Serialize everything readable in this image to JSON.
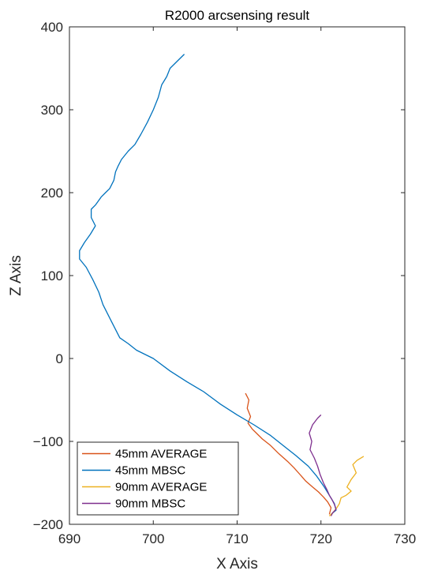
{
  "chart_data": {
    "type": "line",
    "title": "R2000 arcsensing result",
    "xlabel": "X Axis",
    "ylabel": "Z Axis",
    "xlim": [
      690,
      730
    ],
    "ylim": [
      -200,
      400
    ],
    "xticks": [
      690,
      700,
      710,
      720,
      730
    ],
    "yticks": [
      -200,
      -100,
      0,
      100,
      200,
      300,
      400
    ],
    "xtick_labels": [
      "690",
      "700",
      "710",
      "720",
      "730"
    ],
    "ytick_labels": [
      "−200",
      "−100",
      "0",
      "100",
      "200",
      "300",
      "400"
    ],
    "grid": false,
    "legend_position": "bottom-left",
    "series": [
      {
        "name": "45mm AVERAGE",
        "color": "#D95319",
        "x": [
          711.0,
          711.4,
          711.2,
          711.6,
          711.3,
          711.8,
          712.3,
          713.0,
          714.0,
          715.0,
          716.0,
          716.8,
          717.5,
          718.2,
          719.0,
          719.7,
          720.3,
          720.8,
          721.2,
          721.0
        ],
        "y": [
          -42,
          -50,
          -60,
          -70,
          -78,
          -85,
          -90,
          -97,
          -105,
          -115,
          -124,
          -132,
          -140,
          -148,
          -155,
          -161,
          -167,
          -173,
          -180,
          -188
        ]
      },
      {
        "name": "45mm MBSC",
        "color": "#0072BD",
        "x": [
          703.7,
          703.0,
          702.0,
          701.6,
          701.0,
          700.6,
          700.0,
          699.3,
          698.5,
          697.8,
          697.0,
          696.2,
          695.8,
          695.5,
          695.3,
          694.8,
          694.3,
          693.8,
          693.1,
          692.6,
          692.6,
          693.1,
          692.5,
          691.8,
          691.2,
          691.2,
          692.0,
          692.8,
          693.5,
          694.0,
          695.0,
          696.0,
          697.0,
          698.0,
          700.0,
          702.0,
          704.0,
          706.0,
          708.0,
          710.0,
          712.0,
          714.0,
          715.5,
          717.0,
          718.5,
          719.5,
          720.4,
          721.0,
          721.6,
          721.8,
          721.2
        ],
        "y": [
          367,
          360,
          350,
          340,
          330,
          315,
          300,
          285,
          270,
          258,
          250,
          240,
          232,
          225,
          215,
          205,
          200,
          195,
          185,
          180,
          170,
          160,
          150,
          140,
          130,
          120,
          110,
          95,
          80,
          65,
          45,
          25,
          18,
          10,
          0,
          -15,
          -28,
          -40,
          -55,
          -68,
          -80,
          -93,
          -105,
          -117,
          -130,
          -142,
          -155,
          -165,
          -175,
          -183,
          -188
        ]
      },
      {
        "name": "90mm AVERAGE",
        "color": "#EDB120",
        "x": [
          725.1,
          724.3,
          723.8,
          724.2,
          723.6,
          723.1,
          723.6,
          723.0,
          722.4,
          722.2,
          721.9,
          721.5,
          721.0
        ],
        "y": [
          -118,
          -123,
          -128,
          -138,
          -146,
          -155,
          -160,
          -165,
          -168,
          -175,
          -180,
          -185,
          -190
        ]
      },
      {
        "name": "90mm MBSC",
        "color": "#7E2F8E",
        "x": [
          720.0,
          719.6,
          719.0,
          718.6,
          718.9,
          718.7,
          719.2,
          719.6,
          719.9,
          720.3,
          720.7,
          721.0,
          721.3,
          721.6,
          721.8,
          721.4,
          721.2
        ],
        "y": [
          -68,
          -72,
          -80,
          -90,
          -100,
          -110,
          -120,
          -130,
          -140,
          -150,
          -158,
          -165,
          -170,
          -176,
          -182,
          -186,
          -190
        ]
      }
    ]
  }
}
